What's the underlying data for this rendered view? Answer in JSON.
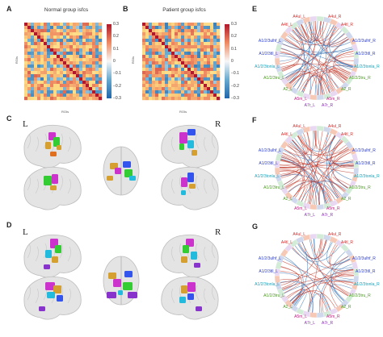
{
  "panels": {
    "a": "A",
    "b": "B",
    "c": "C",
    "d": "D",
    "e": "E",
    "f": "F",
    "g": "G"
  },
  "heatmaps": [
    {
      "title": "Normal group isfcs",
      "axis_label": "ROIs",
      "colorbar_ticks": [
        "0.3",
        "0.2",
        "0.1",
        "0",
        "−0.1",
        "−0.2",
        "−0.3"
      ]
    },
    {
      "title": "Patient group isfcs",
      "axis_label": "ROIs",
      "colorbar_ticks": [
        "0.3",
        "0.2",
        "0.1",
        "0",
        "−0.1",
        "−0.2",
        "−0.3"
      ]
    }
  ],
  "hemisphere": {
    "left": "L",
    "right": "R"
  },
  "chord_labels": [
    [
      "A4ul_L",
      "A4ul_R",
      "A4tl_L",
      "A4tl_R",
      "A1/2/3ulhf_L",
      "A1/2/3ulhf_R",
      "A1/2/3tll_L",
      "A1/2/3tll_R",
      "A1/2/3tonla_L",
      "A1/2/3tonla_R",
      "A1/2/3tru_L",
      "A1/2/3tru_R",
      "A2_L",
      "A2_R",
      "A5m_L",
      "A5m_R",
      "A7r_L",
      "A7r_R"
    ],
    [
      "A4ul_L",
      "A4ul_R",
      "A4tl_L",
      "A4tl_R",
      "A1/2/3ulhf_L",
      "A1/2/3ulhf_R",
      "A1/2/3tll_L",
      "A1/2/3tll_R",
      "A1/2/3tonla_L",
      "A1/2/3tonla_R",
      "A1/2/3tru_L",
      "A1/2/3tru_R",
      "A2_L",
      "A2_R",
      "A5m_L",
      "A5m_R",
      "A7r_L",
      "A7r_R"
    ],
    [
      "A4ul_L",
      "A4ul_R",
      "A4tl_L",
      "A4tl_R",
      "A1/2/3ulhf_L",
      "A1/2/3ulhf_R",
      "A1/2/3tll_L",
      "A1/2/3tll_R",
      "A1/2/3tonla_L",
      "A1/2/3tonla_R",
      "A1/2/3tru_L",
      "A1/2/3tru_R",
      "A2_L",
      "A2_R",
      "A5m_L",
      "A5m_R",
      "A7r_L",
      "A7r_R"
    ]
  ],
  "colors": {
    "red": "#c0392b",
    "blue": "#2f6db3",
    "left_label": "#2a3cc8",
    "right_label": "#c02080",
    "cyan_label": "#1aa0b8",
    "green_label": "#4a9a20",
    "purple_label": "#8a2ab8",
    "red_label": "#d03030"
  }
}
